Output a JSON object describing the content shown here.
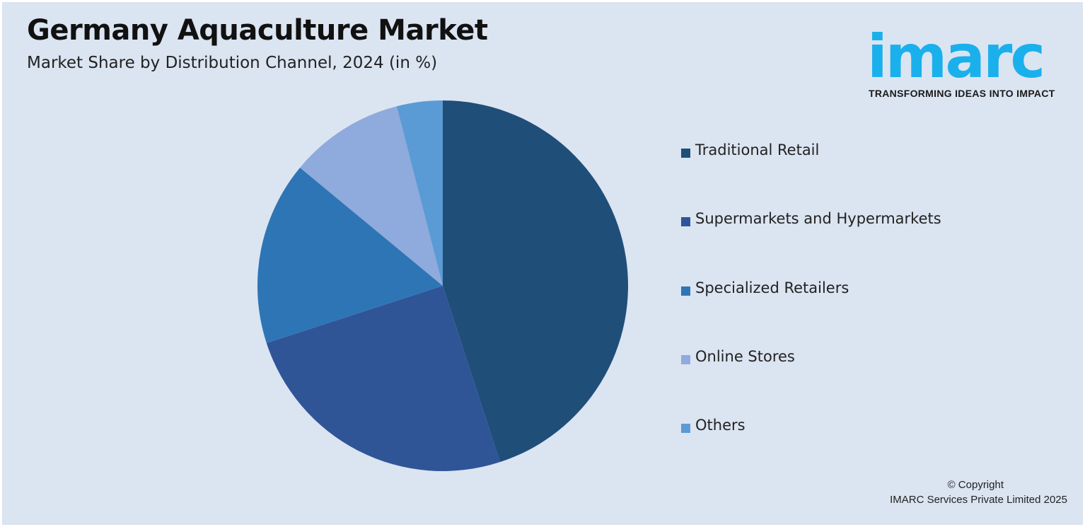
{
  "header": {
    "title": "Germany Aquaculture Market",
    "subtitle": "Market Share by Distribution Channel, 2024 (in %)"
  },
  "logo": {
    "word": "imarc",
    "tagline": "TRANSFORMING IDEAS INTO IMPACT",
    "color": "#1ab0ec"
  },
  "footer": {
    "copyright": "© Copyright",
    "company": "IMARC Services Private Limited 2025"
  },
  "chart_data": {
    "type": "pie",
    "title": "Germany Aquaculture Market",
    "subtitle": "Market Share by Distribution Channel, 2024 (in %)",
    "categories": [
      "Traditional Retail",
      "Supermarkets and Hypermarkets",
      "Specialized Retailers",
      "Online Stores",
      "Others"
    ],
    "values": [
      45,
      25,
      16,
      10,
      4
    ],
    "colors": [
      "#1f4e79",
      "#2f5597",
      "#2e75b6",
      "#8faadc",
      "#5b9bd5"
    ],
    "start_angle": "12 o'clock",
    "direction": "clockwise",
    "legend_placement": "right"
  }
}
